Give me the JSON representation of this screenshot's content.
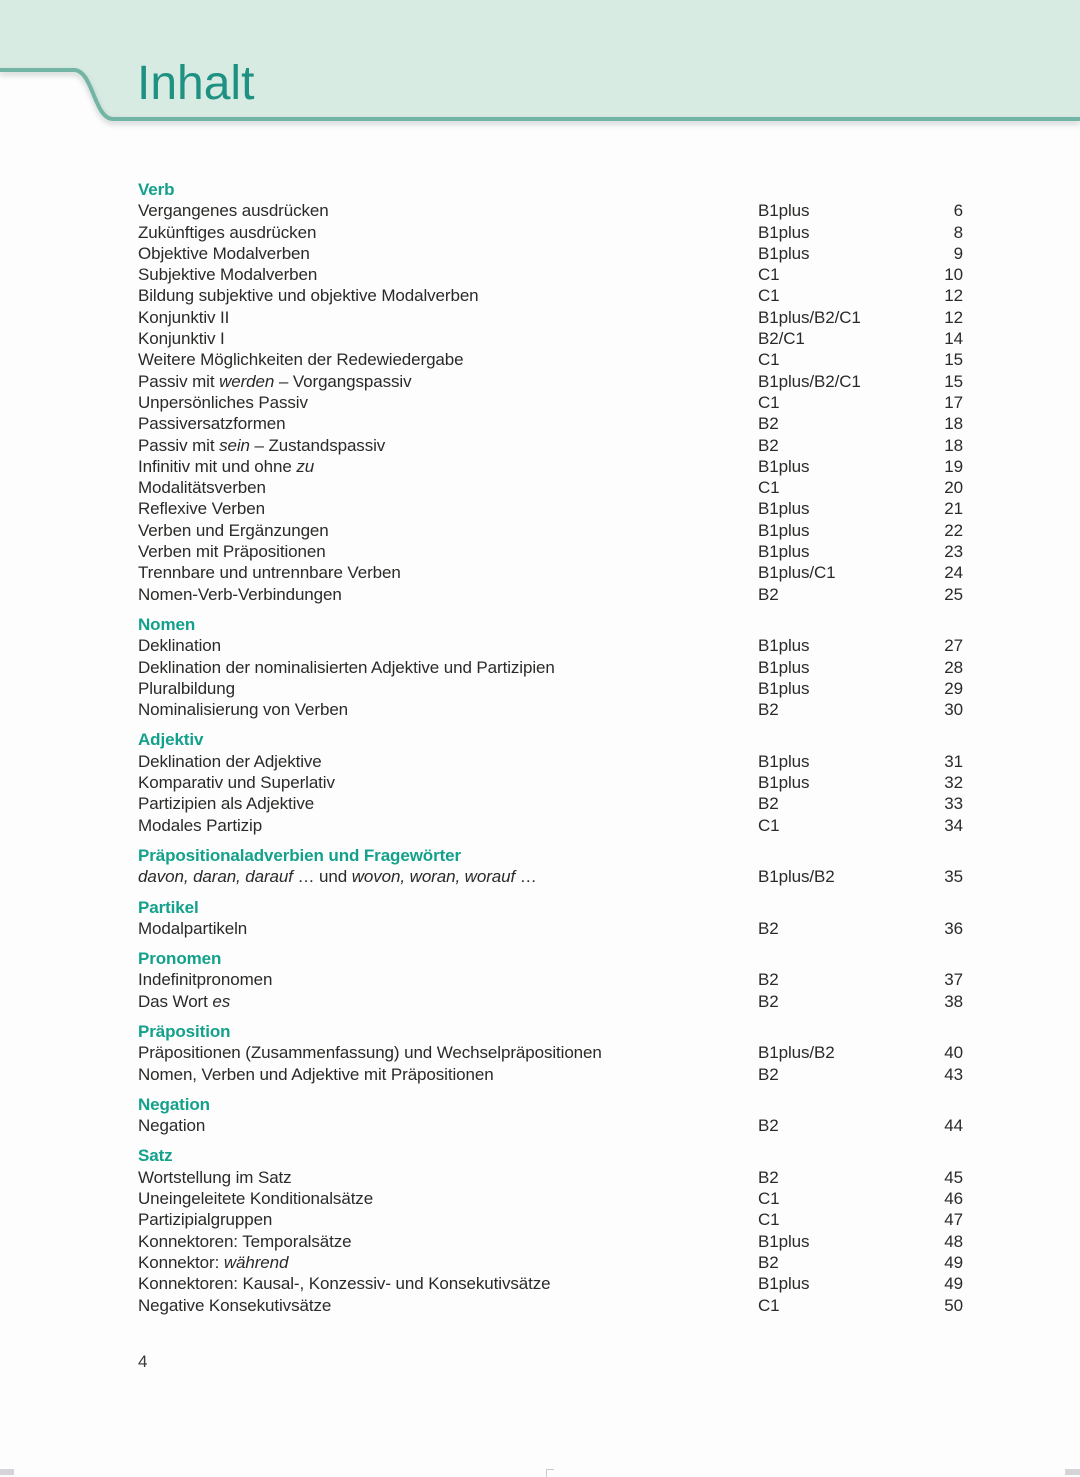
{
  "page": {
    "title": "Inhalt",
    "folio": "4"
  },
  "colors": {
    "band_background": "#d8ebe3",
    "band_border": "#72b5a4",
    "title_teal": "#1e9182",
    "section_heading_teal": "#13a18c",
    "body_text": "#2b2a28"
  },
  "toc": {
    "columns": [
      "title",
      "level",
      "page"
    ],
    "sections": [
      {
        "heading": "Verb",
        "entries": [
          {
            "title": "Vergangenes ausdrücken",
            "level": "B1plus",
            "page": "6"
          },
          {
            "title": "Zukünftiges ausdrücken",
            "level": "B1plus",
            "page": "8"
          },
          {
            "title": "Objektive Modalverben",
            "level": "B1plus",
            "page": "9"
          },
          {
            "title": "Subjektive Modalverben",
            "level": "C1",
            "page": "10"
          },
          {
            "title": "Bildung subjektive und objektive Modalverben",
            "level": "C1",
            "page": "12"
          },
          {
            "title": "Konjunktiv II",
            "level": "B1plus/B2/C1",
            "page": "12"
          },
          {
            "title": "Konjunktiv I",
            "level": "B2/C1",
            "page": "14"
          },
          {
            "title": "Weitere Möglichkeiten der Redewiedergabe",
            "level": "C1",
            "page": "15"
          },
          {
            "title": "Passiv mit *werden* – Vorgangspassiv",
            "level": "B1plus/B2/C1",
            "page": "15"
          },
          {
            "title": "Unpersönliches Passiv",
            "level": "C1",
            "page": "17"
          },
          {
            "title": "Passiversatzformen",
            "level": "B2",
            "page": "18"
          },
          {
            "title": "Passiv mit *sein* – Zustandspassiv",
            "level": "B2",
            "page": "18"
          },
          {
            "title": "Infinitiv mit und ohne *zu*",
            "level": "B1plus",
            "page": "19"
          },
          {
            "title": "Modalitätsverben",
            "level": "C1",
            "page": "20"
          },
          {
            "title": "Reflexive Verben",
            "level": "B1plus",
            "page": "21"
          },
          {
            "title": "Verben und Ergänzungen",
            "level": "B1plus",
            "page": "22"
          },
          {
            "title": "Verben mit Präpositionen",
            "level": "B1plus",
            "page": "23"
          },
          {
            "title": "Trennbare und untrennbare Verben",
            "level": "B1plus/C1",
            "page": "24"
          },
          {
            "title": "Nomen-Verb-Verbindungen",
            "level": "B2",
            "page": "25"
          }
        ]
      },
      {
        "heading": "Nomen",
        "entries": [
          {
            "title": "Deklination",
            "level": "B1plus",
            "page": "27"
          },
          {
            "title": "Deklination der nominalisierten Adjektive und Partizipien",
            "level": "B1plus",
            "page": "28"
          },
          {
            "title": "Pluralbildung",
            "level": "B1plus",
            "page": "29"
          },
          {
            "title": "Nominalisierung von Verben",
            "level": "B2",
            "page": "30"
          }
        ]
      },
      {
        "heading": "Adjektiv",
        "entries": [
          {
            "title": "Deklination der Adjektive",
            "level": "B1plus",
            "page": "31"
          },
          {
            "title": "Komparativ und Superlativ",
            "level": "B1plus",
            "page": "32"
          },
          {
            "title": "Partizipien als Adjektive",
            "level": "B2",
            "page": "33"
          },
          {
            "title": "Modales Partizip",
            "level": "C1",
            "page": "34"
          }
        ]
      },
      {
        "heading": "Präpositionaladverbien und Fragewörter",
        "entries": [
          {
            "title": "*davon, daran, darauf* … und *wovon, woran, worauf* …",
            "level": "B1plus/B2",
            "page": "35"
          }
        ]
      },
      {
        "heading": "Partikel",
        "entries": [
          {
            "title": "Modalpartikeln",
            "level": "B2",
            "page": "36"
          }
        ]
      },
      {
        "heading": "Pronomen",
        "entries": [
          {
            "title": "Indefinitpronomen",
            "level": "B2",
            "page": "37"
          },
          {
            "title": "Das Wort *es*",
            "level": "B2",
            "page": "38"
          }
        ]
      },
      {
        "heading": "Präposition",
        "entries": [
          {
            "title": "Präpositionen (Zusammenfassung) und Wechselpräpositionen",
            "level": "B1plus/B2",
            "page": "40"
          },
          {
            "title": "Nomen, Verben und Adjektive mit Präpositionen",
            "level": "B2",
            "page": "43"
          }
        ]
      },
      {
        "heading": "Negation",
        "entries": [
          {
            "title": "Negation",
            "level": "B2",
            "page": "44"
          }
        ]
      },
      {
        "heading": "Satz",
        "entries": [
          {
            "title": "Wortstellung im Satz",
            "level": "B2",
            "page": "45"
          },
          {
            "title": "Uneingeleitete Konditionalsätze",
            "level": "C1",
            "page": "46"
          },
          {
            "title": "Partizipialgruppen",
            "level": "C1",
            "page": "47"
          },
          {
            "title": "Konnektoren: Temporalsätze",
            "level": "B1plus",
            "page": "48"
          },
          {
            "title": "Konnektor: *während*",
            "level": "B2",
            "page": "49"
          },
          {
            "title": "Konnektoren: Kausal-, Konzessiv- und Konsekutivsätze",
            "level": "B1plus",
            "page": "49"
          },
          {
            "title": "Negative Konsekutivsätze",
            "level": "C1",
            "page": "50"
          }
        ]
      }
    ]
  }
}
